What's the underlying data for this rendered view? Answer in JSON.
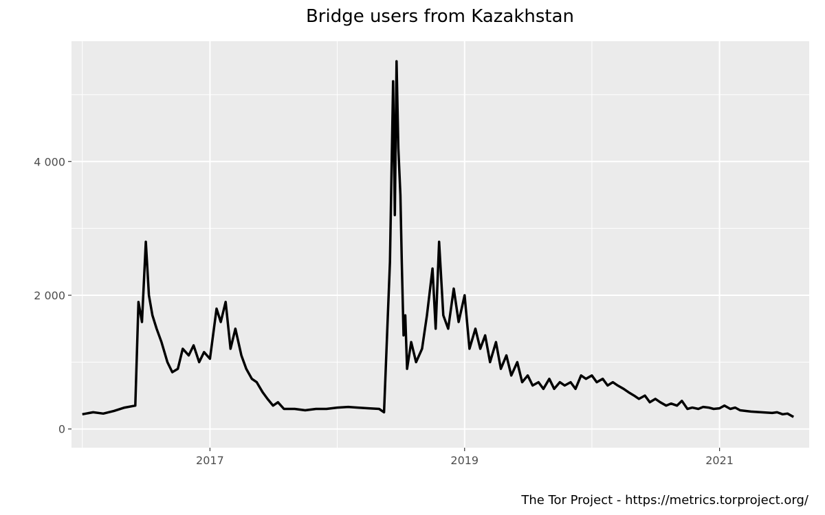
{
  "chart_data": {
    "type": "line",
    "title": "Bridge users from Kazakhstan",
    "xlabel": "",
    "ylabel": "",
    "caption": "The Tor Project - https://metrics.torproject.org/",
    "x_ticks": [
      "2017",
      "2019",
      "2021"
    ],
    "y_ticks": [
      "0",
      "2 000",
      "4 000"
    ],
    "xlim": [
      "2015-12-01",
      "2021-09-15"
    ],
    "ylim": [
      -280,
      5800
    ],
    "grid": true,
    "legend": "none",
    "colors": {
      "panel": "#EBEBEB",
      "grid": "#FFFFFF",
      "line": "#000000"
    },
    "series": [
      {
        "x": [
          "2016-01-01",
          "2016-02-01",
          "2016-03-01",
          "2016-04-01",
          "2016-05-01",
          "2016-06-01",
          "2016-06-10",
          "2016-06-20",
          "2016-07-01",
          "2016-07-10",
          "2016-07-20",
          "2016-08-01",
          "2016-08-15",
          "2016-09-01",
          "2016-09-15",
          "2016-10-01",
          "2016-10-15",
          "2016-11-01",
          "2016-11-15",
          "2016-12-01",
          "2016-12-15",
          "2017-01-01",
          "2017-01-20",
          "2017-02-01",
          "2017-02-15",
          "2017-03-01",
          "2017-03-15",
          "2017-04-01",
          "2017-04-15",
          "2017-05-01",
          "2017-05-15",
          "2017-06-01",
          "2017-06-15",
          "2017-07-01",
          "2017-07-15",
          "2017-08-01",
          "2017-09-01",
          "2017-10-01",
          "2017-11-01",
          "2017-12-01",
          "2018-01-01",
          "2018-02-01",
          "2018-03-01",
          "2018-04-01",
          "2018-05-01",
          "2018-05-15",
          "2018-06-01",
          "2018-06-10",
          "2018-06-15",
          "2018-06-20",
          "2018-06-25",
          "2018-07-01",
          "2018-07-05",
          "2018-07-10",
          "2018-07-15",
          "2018-07-20",
          "2018-08-01",
          "2018-08-15",
          "2018-09-01",
          "2018-09-15",
          "2018-10-01",
          "2018-10-10",
          "2018-10-20",
          "2018-11-01",
          "2018-11-15",
          "2018-12-01",
          "2018-12-15",
          "2019-01-01",
          "2019-01-15",
          "2019-02-01",
          "2019-02-15",
          "2019-03-01",
          "2019-03-15",
          "2019-04-01",
          "2019-04-15",
          "2019-05-01",
          "2019-05-15",
          "2019-06-01",
          "2019-06-15",
          "2019-07-01",
          "2019-07-15",
          "2019-08-01",
          "2019-08-15",
          "2019-09-01",
          "2019-09-15",
          "2019-10-01",
          "2019-10-15",
          "2019-11-01",
          "2019-11-15",
          "2019-12-01",
          "2019-12-15",
          "2020-01-01",
          "2020-01-15",
          "2020-02-01",
          "2020-02-15",
          "2020-03-01",
          "2020-03-15",
          "2020-04-01",
          "2020-04-15",
          "2020-05-01",
          "2020-05-15",
          "2020-06-01",
          "2020-06-15",
          "2020-07-01",
          "2020-07-15",
          "2020-08-01",
          "2020-08-15",
          "2020-09-01",
          "2020-09-15",
          "2020-10-01",
          "2020-10-15",
          "2020-11-01",
          "2020-11-15",
          "2020-12-01",
          "2020-12-15",
          "2021-01-01",
          "2021-01-15",
          "2021-02-01",
          "2021-02-15",
          "2021-03-01",
          "2021-04-01",
          "2021-05-01",
          "2021-06-01",
          "2021-06-15",
          "2021-07-01",
          "2021-07-15",
          "2021-08-01"
        ],
        "y": [
          220,
          250,
          230,
          270,
          320,
          350,
          1900,
          1600,
          2800,
          2000,
          1700,
          1500,
          1300,
          1000,
          850,
          900,
          1200,
          1100,
          1250,
          1000,
          1150,
          1050,
          1800,
          1600,
          1900,
          1200,
          1500,
          1100,
          900,
          750,
          700,
          550,
          450,
          350,
          400,
          300,
          300,
          280,
          300,
          300,
          320,
          330,
          320,
          310,
          300,
          250,
          2500,
          5200,
          3200,
          5500,
          4200,
          3500,
          2500,
          1400,
          1700,
          900,
          1300,
          1000,
          1200,
          1700,
          2400,
          1500,
          2800,
          1700,
          1500,
          2100,
          1600,
          2000,
          1200,
          1500,
          1200,
          1400,
          1000,
          1300,
          900,
          1100,
          800,
          1000,
          700,
          800,
          650,
          700,
          600,
          750,
          600,
          700,
          650,
          700,
          600,
          800,
          750,
          800,
          700,
          750,
          650,
          700,
          650,
          600,
          550,
          500,
          450,
          500,
          400,
          450,
          400,
          350,
          380,
          350,
          420,
          300,
          320,
          300,
          330,
          320,
          300,
          310,
          350,
          300,
          320,
          280,
          260,
          250,
          240,
          250,
          220,
          230,
          180
        ]
      }
    ]
  }
}
